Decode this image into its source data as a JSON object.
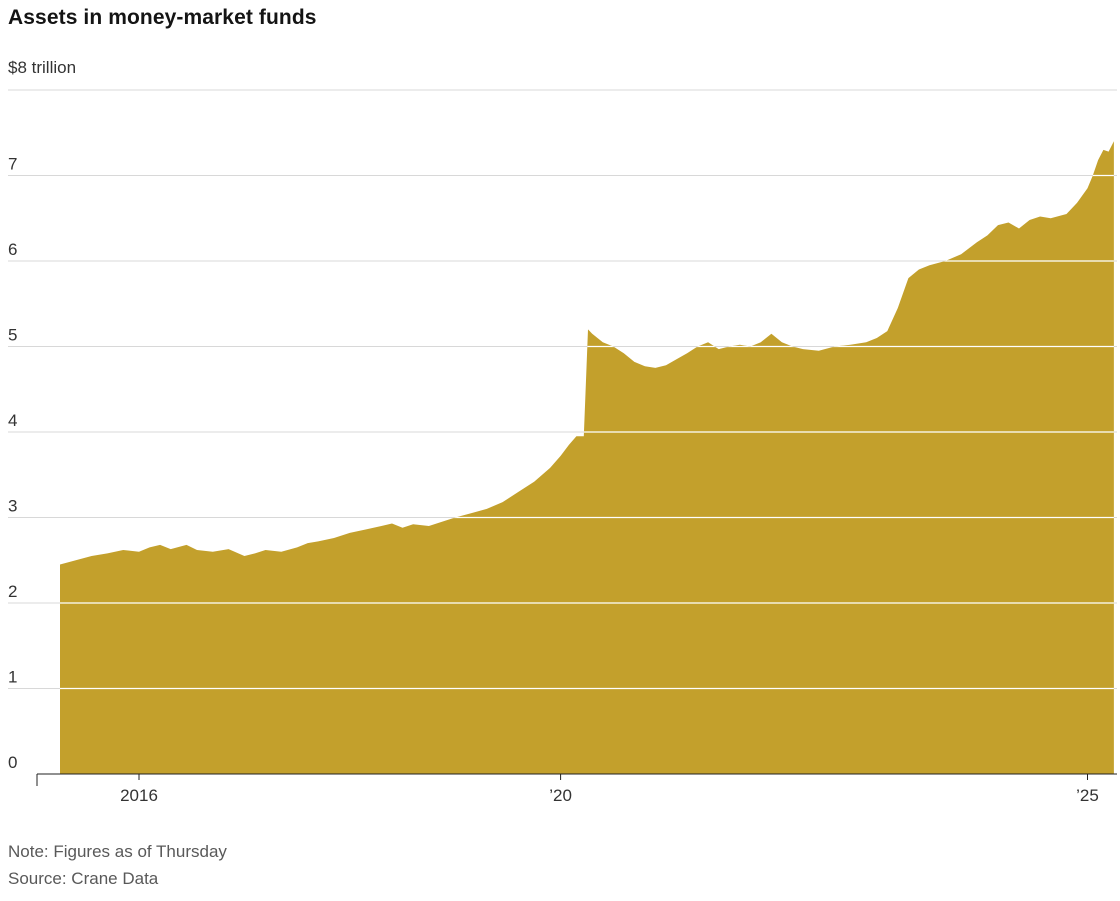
{
  "header": {
    "title": "Assets in money-market funds"
  },
  "axis_unit_label": "$8 trillion",
  "footer": {
    "note": "Note: Figures as of Thursday",
    "source": "Source: Crane Data"
  },
  "colors": {
    "area": "#c3a02c",
    "grid": "#d8d8d8",
    "grid_on_area": "#ffffff",
    "axis": "#202020",
    "text": "#333333",
    "muted": "#595959"
  },
  "chart_data": {
    "type": "area",
    "title": "Assets in money-market funds",
    "xlabel": "",
    "ylabel": "$ trillion",
    "ylim": [
      0,
      8
    ],
    "xlim": [
      2015.25,
      2025.27
    ],
    "grid": true,
    "legend": false,
    "gridlines": [
      1,
      2,
      3,
      4,
      5,
      6,
      7,
      8
    ],
    "yticks": [
      0,
      1,
      2,
      3,
      4,
      5,
      6,
      7
    ],
    "top_axis_label": "$8 trillion",
    "xticks": [
      {
        "x": 2016,
        "label": "2016"
      },
      {
        "x": 2020,
        "label": "’20"
      },
      {
        "x": 2025,
        "label": "’25"
      }
    ],
    "series": [
      {
        "name": "Money-market fund assets ($ trillion)",
        "points": [
          [
            2015.25,
            2.45
          ],
          [
            2015.4,
            2.5
          ],
          [
            2015.55,
            2.55
          ],
          [
            2015.7,
            2.58
          ],
          [
            2015.85,
            2.62
          ],
          [
            2016.0,
            2.6
          ],
          [
            2016.1,
            2.65
          ],
          [
            2016.2,
            2.68
          ],
          [
            2016.3,
            2.63
          ],
          [
            2016.45,
            2.68
          ],
          [
            2016.55,
            2.62
          ],
          [
            2016.7,
            2.6
          ],
          [
            2016.85,
            2.63
          ],
          [
            2017.0,
            2.55
          ],
          [
            2017.1,
            2.58
          ],
          [
            2017.2,
            2.62
          ],
          [
            2017.35,
            2.6
          ],
          [
            2017.5,
            2.65
          ],
          [
            2017.6,
            2.7
          ],
          [
            2017.7,
            2.72
          ],
          [
            2017.85,
            2.76
          ],
          [
            2018.0,
            2.82
          ],
          [
            2018.15,
            2.86
          ],
          [
            2018.3,
            2.9
          ],
          [
            2018.4,
            2.93
          ],
          [
            2018.5,
            2.88
          ],
          [
            2018.6,
            2.92
          ],
          [
            2018.75,
            2.9
          ],
          [
            2018.9,
            2.96
          ],
          [
            2019.0,
            3.0
          ],
          [
            2019.15,
            3.05
          ],
          [
            2019.3,
            3.1
          ],
          [
            2019.45,
            3.18
          ],
          [
            2019.6,
            3.3
          ],
          [
            2019.75,
            3.42
          ],
          [
            2019.9,
            3.58
          ],
          [
            2020.0,
            3.72
          ],
          [
            2020.08,
            3.85
          ],
          [
            2020.15,
            3.95
          ],
          [
            2020.22,
            3.95
          ],
          [
            2020.26,
            5.2
          ],
          [
            2020.3,
            5.15
          ],
          [
            2020.4,
            5.05
          ],
          [
            2020.5,
            5.0
          ],
          [
            2020.6,
            4.92
          ],
          [
            2020.7,
            4.82
          ],
          [
            2020.8,
            4.77
          ],
          [
            2020.9,
            4.75
          ],
          [
            2021.0,
            4.78
          ],
          [
            2021.1,
            4.85
          ],
          [
            2021.2,
            4.92
          ],
          [
            2021.3,
            5.0
          ],
          [
            2021.4,
            5.05
          ],
          [
            2021.5,
            4.97
          ],
          [
            2021.6,
            5.0
          ],
          [
            2021.7,
            5.02
          ],
          [
            2021.8,
            5.0
          ],
          [
            2021.9,
            5.05
          ],
          [
            2022.0,
            5.15
          ],
          [
            2022.1,
            5.05
          ],
          [
            2022.2,
            5.0
          ],
          [
            2022.3,
            4.97
          ],
          [
            2022.45,
            4.95
          ],
          [
            2022.6,
            5.0
          ],
          [
            2022.75,
            5.02
          ],
          [
            2022.9,
            5.05
          ],
          [
            2023.0,
            5.1
          ],
          [
            2023.1,
            5.18
          ],
          [
            2023.2,
            5.45
          ],
          [
            2023.3,
            5.8
          ],
          [
            2023.4,
            5.9
          ],
          [
            2023.5,
            5.95
          ],
          [
            2023.65,
            6.0
          ],
          [
            2023.8,
            6.08
          ],
          [
            2023.95,
            6.22
          ],
          [
            2024.05,
            6.3
          ],
          [
            2024.15,
            6.42
          ],
          [
            2024.25,
            6.45
          ],
          [
            2024.35,
            6.38
          ],
          [
            2024.45,
            6.48
          ],
          [
            2024.55,
            6.52
          ],
          [
            2024.65,
            6.5
          ],
          [
            2024.8,
            6.55
          ],
          [
            2024.9,
            6.68
          ],
          [
            2025.0,
            6.85
          ],
          [
            2025.05,
            7.0
          ],
          [
            2025.1,
            7.18
          ],
          [
            2025.15,
            7.3
          ],
          [
            2025.2,
            7.28
          ],
          [
            2025.25,
            7.4
          ]
        ]
      }
    ]
  }
}
